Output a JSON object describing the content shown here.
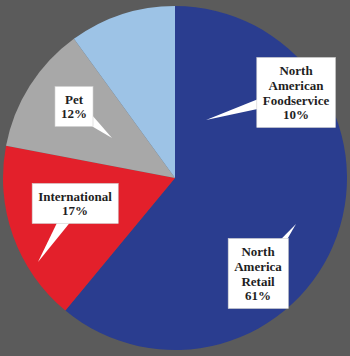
{
  "chart_data": {
    "type": "pie",
    "labels": [
      "North America Retail",
      "International",
      "Pet",
      "North American Foodservice"
    ],
    "values": [
      61,
      17,
      12,
      10
    ],
    "value_labels": [
      "61%",
      "17%",
      "12%",
      "10%"
    ],
    "colors": [
      "#2a3d8f",
      "#e3202b",
      "#a8a8a8",
      "#9dc3e6"
    ],
    "data_labels": true
  }
}
